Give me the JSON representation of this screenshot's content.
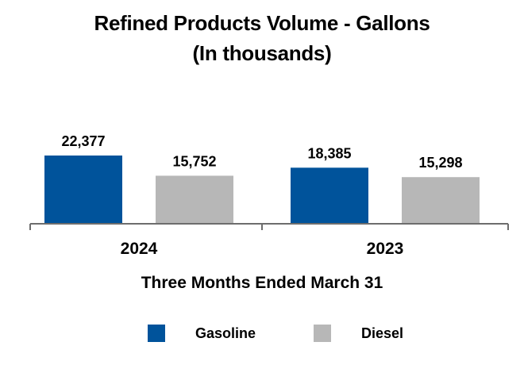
{
  "chart_data": {
    "type": "bar",
    "title_line1": "Refined Products Volume - Gallons",
    "title_line2": "(In thousands)",
    "categories": [
      "2024",
      "2023"
    ],
    "xlabel": "Three Months Ended March 31",
    "ylabel": "",
    "ylim": [
      0,
      50000
    ],
    "grid": false,
    "legend_position": "bottom",
    "series": [
      {
        "name": "Gasoline",
        "color": "#00539b",
        "values": [
          22377,
          18385
        ],
        "labels": [
          "22,377",
          "18,385"
        ]
      },
      {
        "name": "Diesel",
        "color": "#b7b7b7",
        "values": [
          15752,
          15298
        ],
        "labels": [
          "15,752",
          "15,298"
        ]
      }
    ]
  }
}
